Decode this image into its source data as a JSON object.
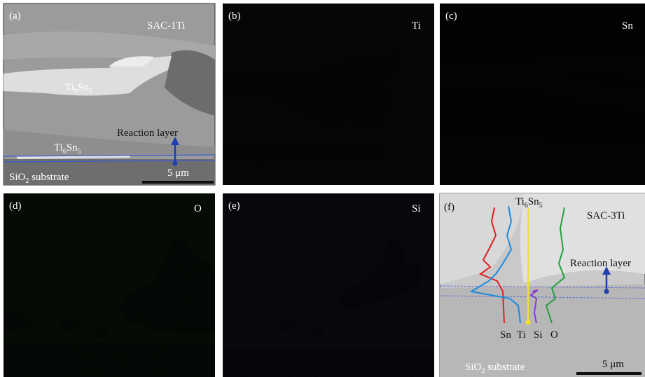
{
  "panels": [
    {
      "label": "(a)",
      "title": "SAC-1Ti",
      "phase_labels": [
        [
          "Ti",
          "6",
          "Sn",
          "5"
        ],
        [
          "Ti",
          "6",
          "Sn",
          "5"
        ]
      ],
      "reaction_layer": "Reaction layer",
      "substrate": [
        "SiO",
        "2",
        " substrate"
      ],
      "scale_bar": "5 μm"
    },
    {
      "label": "(b)",
      "title": "Ti"
    },
    {
      "label": "(c)",
      "title": "Sn"
    },
    {
      "label": "(d)",
      "title": "O"
    },
    {
      "label": "(e)",
      "title": "Si"
    },
    {
      "label": "(f)",
      "title": "SAC-3Ti",
      "phase_labels": [
        [
          "Ti",
          "6",
          "Sn",
          "5"
        ]
      ],
      "reaction_layer": "Reaction layer",
      "substrate": [
        "SiO",
        "2",
        " substrate"
      ],
      "scale_bar": "5 μm",
      "profile_labels": [
        "Sn",
        "Ti",
        "Si",
        "O"
      ]
    }
  ]
}
